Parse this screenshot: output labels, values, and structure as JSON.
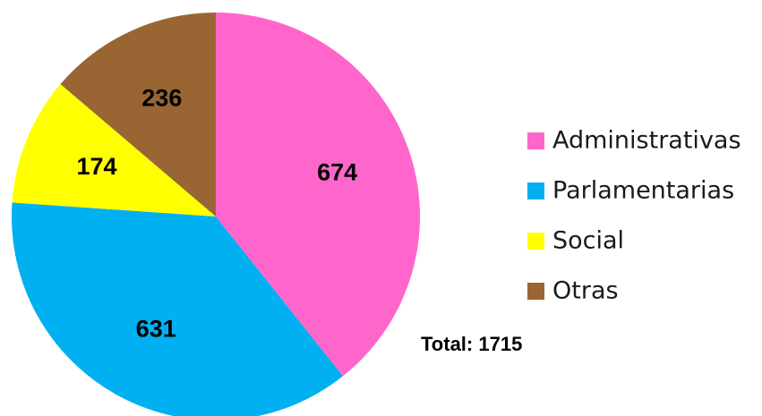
{
  "chart_data": {
    "type": "pie",
    "categories": [
      "Administrativas",
      "Parlamentarias",
      "Social",
      "Otras"
    ],
    "values": [
      674,
      631,
      174,
      236
    ],
    "colors": [
      "#ff66cc",
      "#00b0f0",
      "#ffff00",
      "#996633"
    ],
    "legend": "right",
    "annotation": "Total: 1715"
  }
}
